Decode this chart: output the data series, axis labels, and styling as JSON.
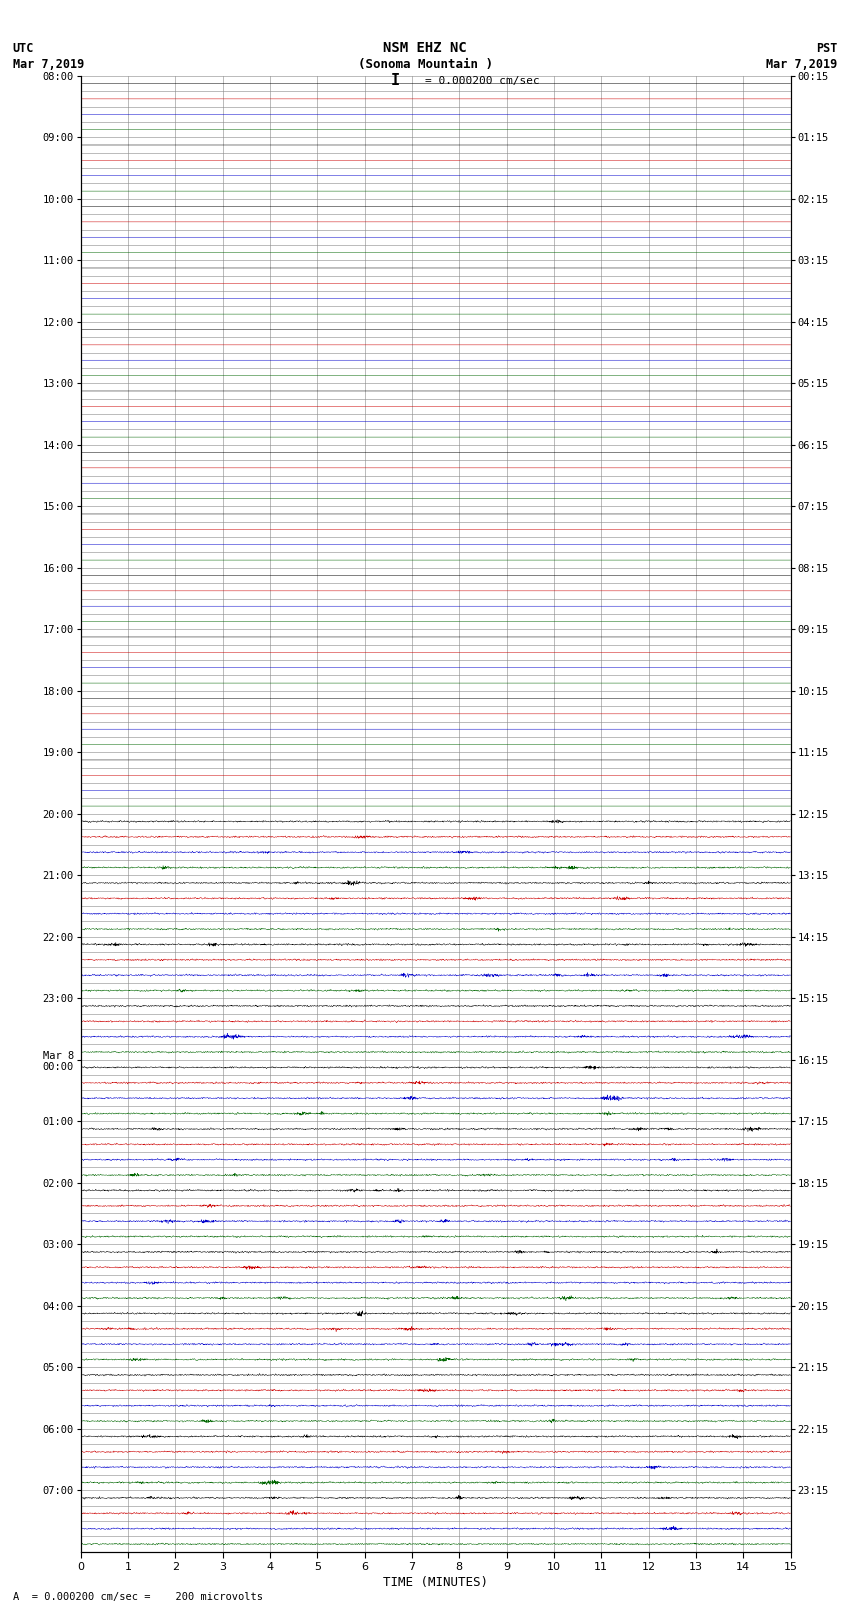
{
  "title_line1": "NSM EHZ NC",
  "title_line2": "(Sonoma Mountain )",
  "scale_text": "I = 0.000200 cm/sec",
  "left_label": "UTC",
  "left_date": "Mar 7,2019",
  "right_label": "PST",
  "right_date": "Mar 7,2019",
  "xlabel": "TIME (MINUTES)",
  "bottom_note": "A  = 0.000200 cm/sec =    200 microvolts",
  "ytick_left": [
    "08:00",
    "09:00",
    "10:00",
    "11:00",
    "12:00",
    "13:00",
    "14:00",
    "15:00",
    "16:00",
    "17:00",
    "18:00",
    "19:00",
    "20:00",
    "21:00",
    "22:00",
    "23:00",
    "Mar 8\n00:00",
    "01:00",
    "02:00",
    "03:00",
    "04:00",
    "05:00",
    "06:00",
    "07:00"
  ],
  "ytick_right": [
    "00:15",
    "01:15",
    "02:15",
    "03:15",
    "04:15",
    "05:15",
    "06:15",
    "07:15",
    "08:15",
    "09:15",
    "10:15",
    "11:15",
    "12:15",
    "13:15",
    "14:15",
    "15:15",
    "16:15",
    "17:15",
    "18:15",
    "19:15",
    "20:15",
    "21:15",
    "22:15",
    "23:15"
  ],
  "n_hour_blocks": 24,
  "traces_per_block": 4,
  "quiet_hour_blocks": 12,
  "bg_color": "#ffffff",
  "trace_colors": [
    "#000000",
    "#cc0000",
    "#0000cc",
    "#006600"
  ],
  "xmin": 0,
  "xmax": 15,
  "xticks": [
    0,
    1,
    2,
    3,
    4,
    5,
    6,
    7,
    8,
    9,
    10,
    11,
    12,
    13,
    14,
    15
  ],
  "grid_color": "#888888",
  "grid_lw": 0.4
}
